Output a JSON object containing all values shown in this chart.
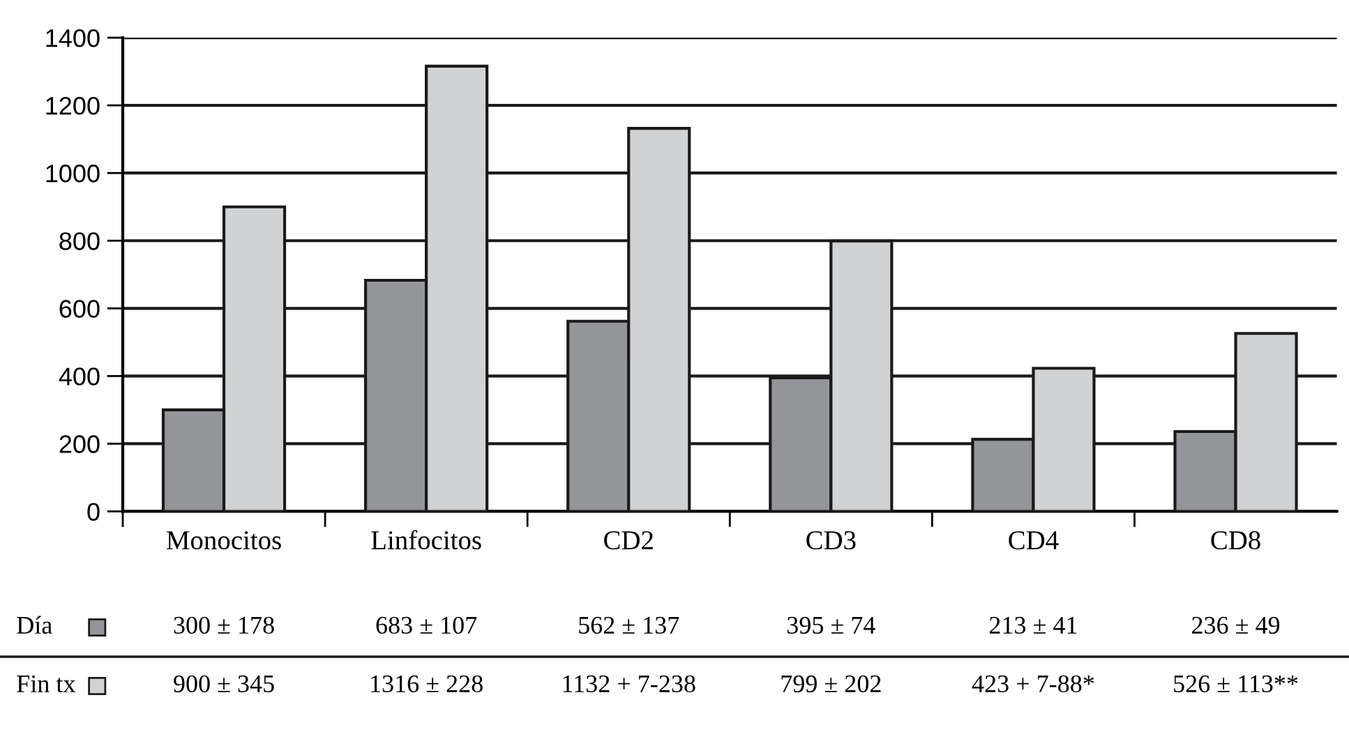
{
  "chart_data": {
    "type": "bar",
    "categories": [
      "Monocitos",
      "Linfocitos",
      "CD2",
      "CD3",
      "CD4",
      "CD8"
    ],
    "series": [
      {
        "name": "Día",
        "color": "#949598",
        "values": [
          300,
          683,
          562,
          395,
          213,
          236
        ],
        "value_labels": [
          "300 ± 178",
          "683 ± 107",
          "562 ± 137",
          "395 ± 74",
          "213 ± 41",
          "236 ± 49"
        ]
      },
      {
        "name": "Fin tx",
        "color": "#d1d2d4",
        "values": [
          900,
          1316,
          1132,
          799,
          423,
          526
        ],
        "value_labels": [
          "900 ± 345",
          "1316 ± 228",
          "1132 + 7-238",
          "799 ± 202",
          "423 + 7-88*",
          "526 ± 113**"
        ]
      }
    ],
    "ylim": [
      0,
      1400
    ],
    "yticks": [
      0,
      200,
      400,
      600,
      800,
      1000,
      1200,
      1400
    ],
    "grid": "y",
    "legend": "bottom left"
  }
}
